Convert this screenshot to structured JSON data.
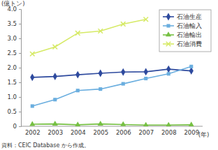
{
  "chart_data": {
    "type": "line",
    "xlabel": "(年)",
    "ylabel": "(億トン)",
    "source": "資料：CEIC Database から作成。",
    "categories": [
      "2002",
      "2003",
      "2004",
      "2005",
      "2006",
      "2007",
      "2008",
      "2009"
    ],
    "series": [
      {
        "name": "石油生産",
        "color": "#2e4a9e",
        "marker": "diamond",
        "values": [
          1.67,
          1.7,
          1.76,
          1.81,
          1.85,
          1.86,
          1.95,
          1.89
        ]
      },
      {
        "name": "石油輸入",
        "color": "#6aaedf",
        "marker": "square",
        "values": [
          0.69,
          0.91,
          1.22,
          1.27,
          1.45,
          1.63,
          1.79,
          2.04
        ]
      },
      {
        "name": "石油輸出",
        "color": "#76c043",
        "marker": "triangle",
        "values": [
          0.07,
          0.08,
          0.05,
          0.08,
          0.06,
          0.04,
          0.04,
          0.05
        ]
      },
      {
        "name": "石油消費",
        "color": "#d6ea66",
        "marker": "x",
        "values": [
          2.47,
          2.71,
          3.18,
          3.25,
          3.49,
          3.65,
          null,
          null
        ]
      }
    ],
    "ylim": [
      0,
      4
    ],
    "yticks": [
      0,
      0.5,
      {
        "value": 1,
        "label": "1.0"
      },
      1.5,
      {
        "value": 2,
        "label": "2.0"
      },
      2.5,
      {
        "value": 3,
        "label": "3.0"
      },
      3.5,
      {
        "value": 4,
        "label": "4.0"
      }
    ],
    "grid": false,
    "legend": "upper right"
  }
}
